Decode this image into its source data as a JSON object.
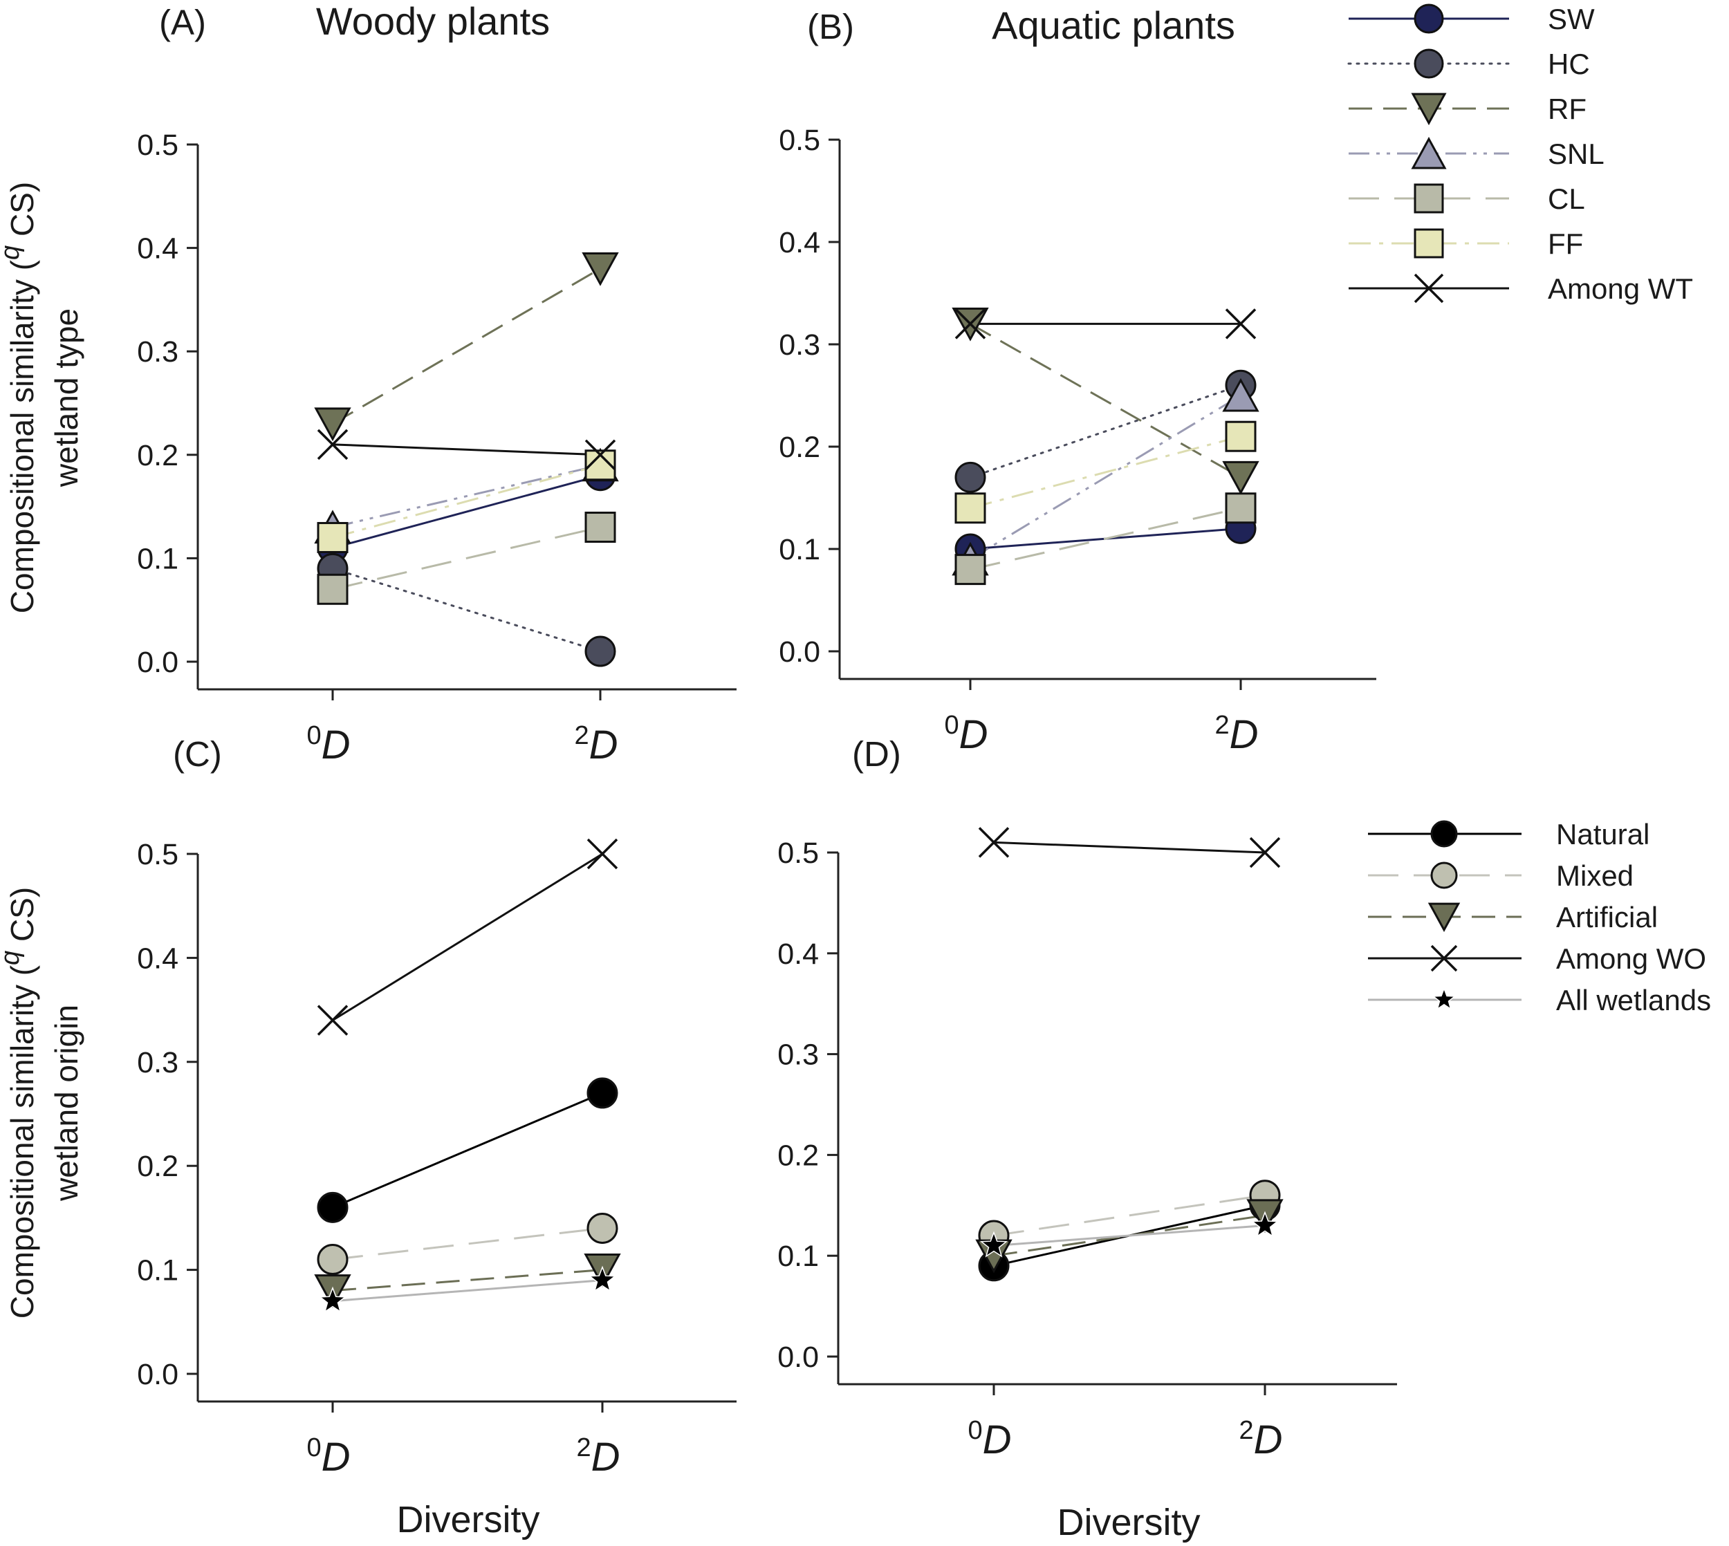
{
  "figure": {
    "ylabel_top_line1": "Compositional similarity (",
    "ylabel_q": "q",
    "ylabel_line1_end": " CS)",
    "ylabel_type_line2": "wetland type",
    "ylabel_origin_line2": "wetland origin",
    "xlabel": "Diversity"
  },
  "legend_type": [
    {
      "label": "SW",
      "marker": "circle",
      "fill": "#1f2357",
      "line": "#1f2357",
      "dash": "solid"
    },
    {
      "label": "HC",
      "marker": "circle",
      "fill": "#4a4c5c",
      "line": "#4a4c5c",
      "dash": "dotted"
    },
    {
      "label": "RF",
      "marker": "tri-down",
      "fill": "#6e7257",
      "line": "#6e7257",
      "dash": "dash"
    },
    {
      "label": "SNL",
      "marker": "tri-up",
      "fill": "#9a9bb3",
      "line": "#9a9bb3",
      "dash": "dashdotdot"
    },
    {
      "label": "CL",
      "marker": "square",
      "fill": "#b8baa8",
      "line": "#b8baa8",
      "dash": "longdash"
    },
    {
      "label": "FF",
      "marker": "square",
      "fill": "#e6e6b8",
      "line": "#dcdcb0",
      "dash": "dashdot"
    },
    {
      "label": "Among WT",
      "marker": "x",
      "fill": "none",
      "line": "#111111",
      "dash": "solid"
    }
  ],
  "legend_origin": [
    {
      "label": "Natural",
      "marker": "circle",
      "fill": "#000000",
      "line": "#000000",
      "dash": "solid"
    },
    {
      "label": "Mixed",
      "marker": "circle",
      "fill": "#bfc0b0",
      "line": "#c4c4bc",
      "dash": "longdash"
    },
    {
      "label": "Artificial",
      "marker": "tri-down",
      "fill": "#6b6e55",
      "line": "#6b6e55",
      "dash": "dash"
    },
    {
      "label": "Among WO",
      "marker": "x",
      "fill": "none",
      "line": "#111111",
      "dash": "solid"
    },
    {
      "label": "All wetlands",
      "marker": "star",
      "fill": "#000000",
      "line": "#b5b5b5",
      "dash": "solid"
    }
  ],
  "chart_data": [
    {
      "type": "line",
      "panel": "(A)",
      "title": "Woody plants",
      "categories": [
        "0D",
        "2D"
      ],
      "ylim": [
        0,
        0.5
      ],
      "yticks": [
        "0.0",
        "0.1",
        "0.2",
        "0.3",
        "0.4",
        "0.5"
      ],
      "series": [
        {
          "name": "SW",
          "values": [
            0.11,
            0.18
          ]
        },
        {
          "name": "HC",
          "values": [
            0.09,
            0.01
          ]
        },
        {
          "name": "RF",
          "values": [
            0.23,
            0.38
          ]
        },
        {
          "name": "SNL",
          "values": [
            0.13,
            0.19
          ]
        },
        {
          "name": "CL",
          "values": [
            0.07,
            0.13
          ]
        },
        {
          "name": "FF",
          "values": [
            0.12,
            0.19
          ]
        },
        {
          "name": "Among WT",
          "values": [
            0.21,
            0.2
          ]
        }
      ]
    },
    {
      "type": "line",
      "panel": "(B)",
      "title": "Aquatic plants",
      "categories": [
        "0D",
        "2D"
      ],
      "ylim": [
        0,
        0.5
      ],
      "yticks": [
        "0.0",
        "0.1",
        "0.2",
        "0.3",
        "0.4",
        "0.5"
      ],
      "series": [
        {
          "name": "SW",
          "values": [
            0.1,
            0.12
          ]
        },
        {
          "name": "HC",
          "values": [
            0.17,
            0.26
          ]
        },
        {
          "name": "RF",
          "values": [
            0.32,
            0.17
          ]
        },
        {
          "name": "SNL",
          "values": [
            0.09,
            0.25
          ]
        },
        {
          "name": "CL",
          "values": [
            0.08,
            0.14
          ]
        },
        {
          "name": "FF",
          "values": [
            0.14,
            0.21
          ]
        },
        {
          "name": "Among WT",
          "values": [
            0.32,
            0.32
          ]
        }
      ]
    },
    {
      "type": "line",
      "panel": "(C)",
      "title": "",
      "categories": [
        "0D",
        "2D"
      ],
      "ylim": [
        0,
        0.5
      ],
      "yticks": [
        "0.0",
        "0.1",
        "0.2",
        "0.3",
        "0.4",
        "0.5"
      ],
      "series": [
        {
          "name": "Natural",
          "values": [
            0.16,
            0.27
          ]
        },
        {
          "name": "Mixed",
          "values": [
            0.11,
            0.14
          ]
        },
        {
          "name": "Artificial",
          "values": [
            0.08,
            0.1
          ]
        },
        {
          "name": "Among WO",
          "values": [
            0.34,
            0.5
          ]
        },
        {
          "name": "All wetlands",
          "values": [
            0.07,
            0.09
          ]
        }
      ]
    },
    {
      "type": "line",
      "panel": "(D)",
      "title": "",
      "categories": [
        "0D",
        "2D"
      ],
      "ylim": [
        0,
        0.5
      ],
      "yticks": [
        "0.0",
        "0.1",
        "0.2",
        "0.3",
        "0.4",
        "0.5"
      ],
      "series": [
        {
          "name": "Natural",
          "values": [
            0.09,
            0.15
          ]
        },
        {
          "name": "Mixed",
          "values": [
            0.12,
            0.16
          ]
        },
        {
          "name": "Artificial",
          "values": [
            0.1,
            0.14
          ]
        },
        {
          "name": "Among WO",
          "values": [
            0.51,
            0.5
          ]
        },
        {
          "name": "All wetlands",
          "values": [
            0.11,
            0.13
          ]
        }
      ]
    }
  ]
}
